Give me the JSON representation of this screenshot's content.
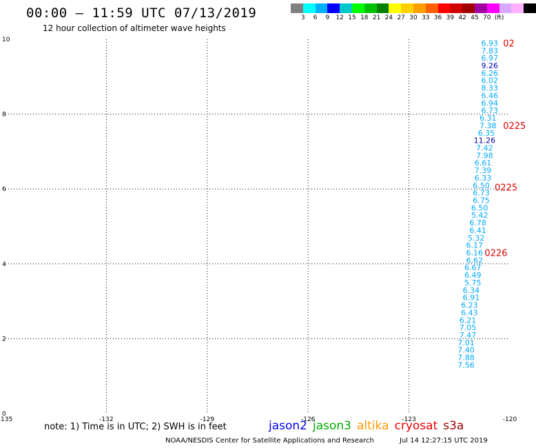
{
  "header": {
    "title": "00:00 — 11:59 UTC 07/13/2019",
    "subtitle": "12 hour collection of altimeter wave heights"
  },
  "color_scale": {
    "colors": [
      "#808080",
      "#00ffff",
      "#00b0ff",
      "#0000ff",
      "#00c8c8",
      "#00ff00",
      "#00c000",
      "#008000",
      "#ffff00",
      "#ffd000",
      "#ffa000",
      "#ff6000",
      "#ff0000",
      "#d00000",
      "#a00000",
      "#a000a0",
      "#ff00ff",
      "#d8a8ff",
      "#ffb0ff",
      "#000000"
    ],
    "labels": [
      "3",
      "6",
      "9",
      "12",
      "15",
      "18",
      "21",
      "24",
      "27",
      "30",
      "33",
      "36",
      "39",
      "42",
      "45",
      "70",
      "(ft)"
    ]
  },
  "chart_data": {
    "type": "scatter",
    "title": "",
    "xlabel": "",
    "ylabel": "",
    "xlim": [
      -135,
      -120
    ],
    "ylim": [
      0,
      10
    ],
    "x_ticks": [
      "-135",
      "-132",
      "-129",
      "-126",
      "-123",
      "-120"
    ],
    "y_ticks": [
      "0",
      "2",
      "4",
      "6",
      "8",
      "10"
    ],
    "grid": true,
    "series": [
      {
        "name": "",
        "color": "#00aaff",
        "points": [
          {
            "x": -120.6,
            "y": 9.9,
            "label": "6.93"
          },
          {
            "x": -120.6,
            "y": 9.7,
            "label": "7.83"
          },
          {
            "x": -120.6,
            "y": 9.5,
            "label": "6.97"
          },
          {
            "x": -120.6,
            "y": 9.3,
            "label": "9.26",
            "color": "#0000cc"
          },
          {
            "x": -120.6,
            "y": 9.1,
            "label": "6.26"
          },
          {
            "x": -120.6,
            "y": 8.9,
            "label": "6.02"
          },
          {
            "x": -120.6,
            "y": 8.7,
            "label": "8.33"
          },
          {
            "x": -120.6,
            "y": 8.5,
            "label": "6.46"
          },
          {
            "x": -120.6,
            "y": 8.3,
            "label": "6.94"
          },
          {
            "x": -120.6,
            "y": 8.1,
            "label": "6.73"
          },
          {
            "x": -120.65,
            "y": 7.9,
            "label": "6.31"
          },
          {
            "x": -120.65,
            "y": 7.7,
            "label": "7.38"
          },
          {
            "x": -120.7,
            "y": 7.5,
            "label": "6.35"
          },
          {
            "x": -120.75,
            "y": 7.3,
            "label": "11.26",
            "color": "#000099"
          },
          {
            "x": -120.75,
            "y": 7.1,
            "label": "7.42"
          },
          {
            "x": -120.75,
            "y": 6.9,
            "label": "7.98"
          },
          {
            "x": -120.8,
            "y": 6.7,
            "label": "6.61"
          },
          {
            "x": -120.8,
            "y": 6.5,
            "label": "7.39"
          },
          {
            "x": -120.8,
            "y": 6.3,
            "label": "6.33"
          },
          {
            "x": -120.85,
            "y": 6.1,
            "label": "6.50"
          },
          {
            "x": -120.85,
            "y": 5.9,
            "label": "6.73"
          },
          {
            "x": -120.85,
            "y": 5.7,
            "label": "6.75"
          },
          {
            "x": -120.9,
            "y": 5.5,
            "label": "6.50"
          },
          {
            "x": -120.9,
            "y": 5.3,
            "label": "5.42"
          },
          {
            "x": -120.95,
            "y": 5.1,
            "label": "6.78"
          },
          {
            "x": -120.95,
            "y": 4.9,
            "label": "6.41"
          },
          {
            "x": -121.0,
            "y": 4.7,
            "label": "5.32"
          },
          {
            "x": -121.05,
            "y": 4.5,
            "label": "6.17"
          },
          {
            "x": -121.05,
            "y": 4.3,
            "label": "6.16"
          },
          {
            "x": -121.05,
            "y": 4.1,
            "label": "6.62"
          },
          {
            "x": -121.1,
            "y": 3.9,
            "label": "6.67"
          },
          {
            "x": -121.1,
            "y": 3.7,
            "label": "6.49"
          },
          {
            "x": -121.1,
            "y": 3.5,
            "label": "5.75"
          },
          {
            "x": -121.15,
            "y": 3.3,
            "label": "6.34"
          },
          {
            "x": -121.15,
            "y": 3.1,
            "label": "6.91"
          },
          {
            "x": -121.2,
            "y": 2.9,
            "label": "6.23"
          },
          {
            "x": -121.2,
            "y": 2.7,
            "label": "6.43"
          },
          {
            "x": -121.25,
            "y": 2.5,
            "label": "6.21"
          },
          {
            "x": -121.25,
            "y": 2.3,
            "label": "7.05"
          },
          {
            "x": -121.25,
            "y": 2.1,
            "label": "7.47"
          },
          {
            "x": -121.3,
            "y": 1.9,
            "label": "7.01"
          },
          {
            "x": -121.3,
            "y": 1.7,
            "label": "7.40"
          },
          {
            "x": -121.3,
            "y": 1.5,
            "label": "7.88"
          },
          {
            "x": -121.3,
            "y": 1.3,
            "label": "7.56"
          }
        ]
      }
    ],
    "time_labels": [
      {
        "x": -120.2,
        "y": 9.9,
        "text": "02"
      },
      {
        "x": -120.2,
        "y": 7.7,
        "text": "0225"
      },
      {
        "x": -120.45,
        "y": 6.05,
        "text": "0225"
      },
      {
        "x": -120.75,
        "y": 4.3,
        "text": "0226"
      }
    ]
  },
  "footer": {
    "note": "note: 1) Time is in UTC; 2) SWH is in feet",
    "satellites": [
      {
        "name": "jason2",
        "color": "#0000ee"
      },
      {
        "name": "jason3",
        "color": "#00aa00"
      },
      {
        "name": "altika",
        "color": "#ff9900"
      },
      {
        "name": "cryosat",
        "color": "#ee0000"
      },
      {
        "name": "s3a",
        "color": "#990000"
      }
    ],
    "credit": "NOAA/NESDIS Center for Satellite Applications and Research",
    "timestamp": "Jul 14 12:27:15 UTC 2019"
  }
}
